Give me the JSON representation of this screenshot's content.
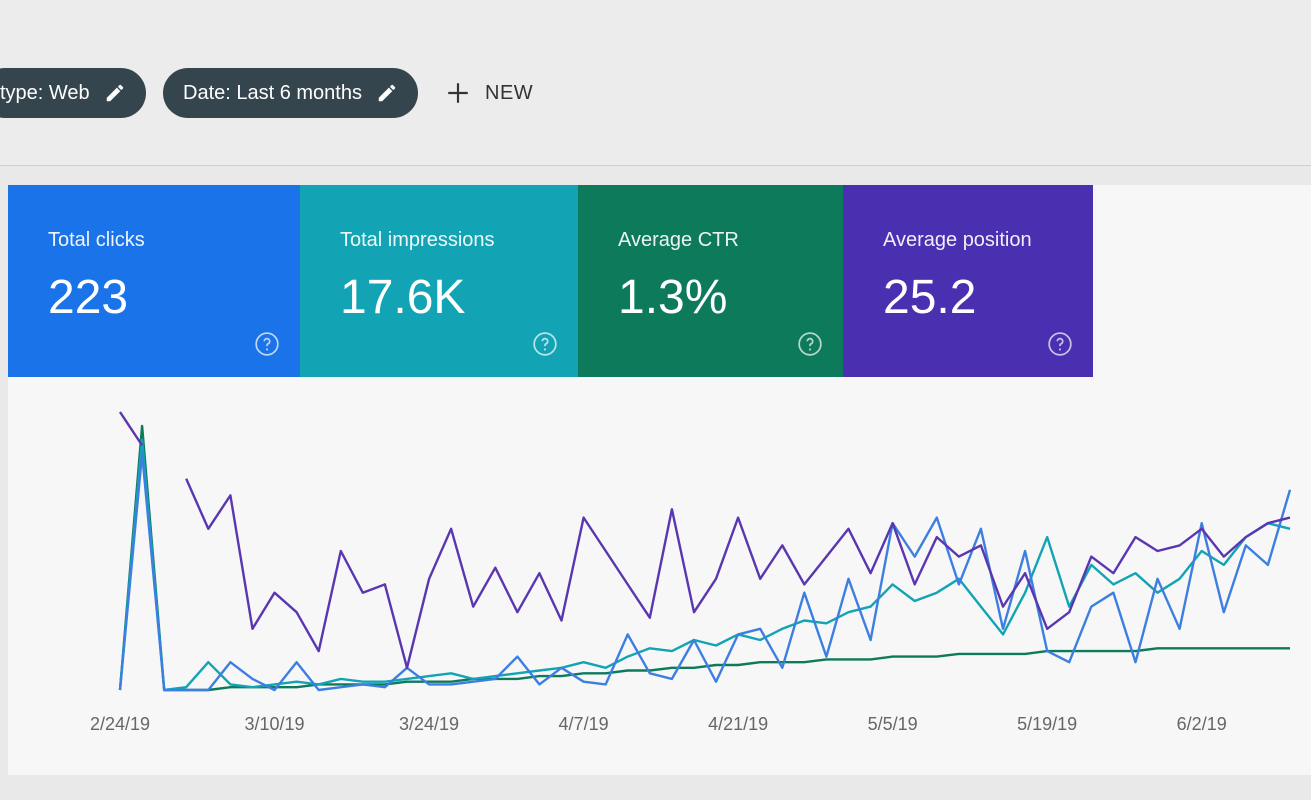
{
  "toolbar": {
    "chips": [
      "type: Web",
      "Date: Last 6 months"
    ],
    "new_button": "NEW"
  },
  "cards": [
    {
      "label": "Total clicks",
      "value": "223",
      "color": "#1a73e8"
    },
    {
      "label": "Total impressions",
      "value": "17.6K",
      "color": "#12a4b4"
    },
    {
      "label": "Average CTR",
      "value": "1.3%",
      "color": "#0e7a5c"
    },
    {
      "label": "Average position",
      "value": "25.2",
      "color": "#4a2fb0"
    }
  ],
  "chart_data": {
    "type": "line",
    "categories": [
      "2/24/19",
      null,
      null,
      null,
      null,
      null,
      null,
      "3/10/19",
      null,
      null,
      null,
      null,
      null,
      null,
      "3/24/19",
      null,
      null,
      null,
      null,
      null,
      null,
      "4/7/19",
      null,
      null,
      null,
      null,
      null,
      null,
      "4/21/19",
      null,
      null,
      null,
      null,
      null,
      null,
      "5/5/19",
      null,
      null,
      null,
      null,
      null,
      null,
      "5/19/19",
      null,
      null,
      null,
      null,
      null,
      null,
      "6/2/19",
      null,
      null,
      null,
      null
    ],
    "series": [
      {
        "color": "#0e7a5c",
        "values": [
          0,
          95,
          0,
          0,
          0,
          1,
          1,
          1,
          1,
          2,
          2,
          2,
          2,
          3,
          3,
          3,
          4,
          4,
          4,
          5,
          5,
          6,
          6,
          7,
          7,
          8,
          8,
          9,
          9,
          10,
          10,
          10,
          11,
          11,
          11,
          12,
          12,
          12,
          13,
          13,
          13,
          13,
          14,
          14,
          14,
          14,
          14,
          15,
          15,
          15,
          15,
          15,
          15,
          15
        ]
      },
      {
        "color": "#12a4b4",
        "values": [
          0,
          90,
          0,
          1,
          10,
          2,
          1,
          2,
          3,
          2,
          4,
          3,
          3,
          4,
          5,
          6,
          4,
          5,
          6,
          7,
          8,
          10,
          8,
          12,
          15,
          14,
          18,
          16,
          20,
          18,
          22,
          25,
          24,
          28,
          30,
          38,
          32,
          35,
          40,
          30,
          20,
          35,
          55,
          30,
          45,
          38,
          42,
          35,
          40,
          50,
          45,
          55,
          60,
          58
        ]
      },
      {
        "color": "#3d7fe0",
        "values": [
          0,
          85,
          0,
          0,
          0,
          10,
          4,
          0,
          10,
          0,
          1,
          2,
          1,
          8,
          2,
          2,
          3,
          4,
          12,
          2,
          8,
          3,
          2,
          20,
          6,
          4,
          18,
          3,
          20,
          22,
          8,
          35,
          12,
          40,
          18,
          60,
          48,
          62,
          38,
          58,
          22,
          50,
          14,
          10,
          30,
          35,
          10,
          40,
          22,
          60,
          28,
          52,
          45,
          72
        ]
      },
      {
        "color": "#5a36b0",
        "values": [
          100,
          88,
          null,
          76,
          58,
          70,
          22,
          35,
          28,
          14,
          50,
          35,
          38,
          8,
          40,
          58,
          30,
          44,
          28,
          42,
          25,
          62,
          50,
          38,
          26,
          65,
          28,
          40,
          62,
          40,
          52,
          38,
          48,
          58,
          42,
          60,
          38,
          55,
          48,
          52,
          30,
          42,
          22,
          28,
          48,
          42,
          55,
          50,
          52,
          58,
          48,
          55,
          60,
          62
        ]
      }
    ]
  }
}
